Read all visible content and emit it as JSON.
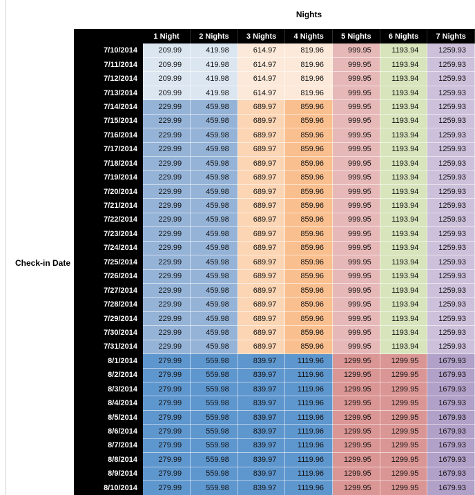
{
  "left_label": "Check-in Date",
  "chart_data": {
    "type": "table",
    "col_group_header": "Nights",
    "row_group_header": "Check-in Date",
    "columns": [
      "1 Night",
      "2 Nights",
      "3 Nights",
      "4 Nights",
      "5 Nights",
      "6 Nights",
      "7 Nights"
    ],
    "rows": [
      {
        "date": "7/10/2014",
        "values": [
          "209.99",
          "419.98",
          "614.97",
          "819.96",
          "999.95",
          "1193.94",
          "1259.93"
        ]
      },
      {
        "date": "7/11/2014",
        "values": [
          "209.99",
          "419.98",
          "614.97",
          "819.96",
          "999.95",
          "1193.94",
          "1259.93"
        ]
      },
      {
        "date": "7/12/2014",
        "values": [
          "209.99",
          "419.98",
          "614.97",
          "819.96",
          "999.95",
          "1193.94",
          "1259.93"
        ]
      },
      {
        "date": "7/13/2014",
        "values": [
          "209.99",
          "419.98",
          "614.97",
          "819.96",
          "999.95",
          "1193.94",
          "1259.93"
        ]
      },
      {
        "date": "7/14/2014",
        "values": [
          "229.99",
          "459.98",
          "689.97",
          "859.96",
          "999.95",
          "1193.94",
          "1259.93"
        ]
      },
      {
        "date": "7/15/2014",
        "values": [
          "229.99",
          "459.98",
          "689.97",
          "859.96",
          "999.95",
          "1193.94",
          "1259.93"
        ]
      },
      {
        "date": "7/16/2014",
        "values": [
          "229.99",
          "459.98",
          "689.97",
          "859.96",
          "999.95",
          "1193.94",
          "1259.93"
        ]
      },
      {
        "date": "7/17/2014",
        "values": [
          "229.99",
          "459.98",
          "689.97",
          "859.96",
          "999.95",
          "1193.94",
          "1259.93"
        ]
      },
      {
        "date": "7/18/2014",
        "values": [
          "229.99",
          "459.98",
          "689.97",
          "859.96",
          "999.95",
          "1193.94",
          "1259.93"
        ]
      },
      {
        "date": "7/19/2014",
        "values": [
          "229.99",
          "459.98",
          "689.97",
          "859.96",
          "999.95",
          "1193.94",
          "1259.93"
        ]
      },
      {
        "date": "7/20/2014",
        "values": [
          "229.99",
          "459.98",
          "689.97",
          "859.96",
          "999.95",
          "1193.94",
          "1259.93"
        ]
      },
      {
        "date": "7/21/2014",
        "values": [
          "229.99",
          "459.98",
          "689.97",
          "859.96",
          "999.95",
          "1193.94",
          "1259.93"
        ]
      },
      {
        "date": "7/22/2014",
        "values": [
          "229.99",
          "459.98",
          "689.97",
          "859.96",
          "999.95",
          "1193.94",
          "1259.93"
        ]
      },
      {
        "date": "7/23/2014",
        "values": [
          "229.99",
          "459.98",
          "689.97",
          "859.96",
          "999.95",
          "1193.94",
          "1259.93"
        ]
      },
      {
        "date": "7/24/2014",
        "values": [
          "229.99",
          "459.98",
          "689.97",
          "859.96",
          "999.95",
          "1193.94",
          "1259.93"
        ]
      },
      {
        "date": "7/25/2014",
        "values": [
          "229.99",
          "459.98",
          "689.97",
          "859.96",
          "999.95",
          "1193.94",
          "1259.93"
        ]
      },
      {
        "date": "7/26/2014",
        "values": [
          "229.99",
          "459.98",
          "689.97",
          "859.96",
          "999.95",
          "1193.94",
          "1259.93"
        ]
      },
      {
        "date": "7/27/2014",
        "values": [
          "229.99",
          "459.98",
          "689.97",
          "859.96",
          "999.95",
          "1193.94",
          "1259.93"
        ]
      },
      {
        "date": "7/28/2014",
        "values": [
          "229.99",
          "459.98",
          "689.97",
          "859.96",
          "999.95",
          "1193.94",
          "1259.93"
        ]
      },
      {
        "date": "7/29/2014",
        "values": [
          "229.99",
          "459.98",
          "689.97",
          "859.96",
          "999.95",
          "1193.94",
          "1259.93"
        ]
      },
      {
        "date": "7/30/2014",
        "values": [
          "229.99",
          "459.98",
          "689.97",
          "859.96",
          "999.95",
          "1193.94",
          "1259.93"
        ]
      },
      {
        "date": "7/31/2014",
        "values": [
          "229.99",
          "459.98",
          "689.97",
          "859.96",
          "999.95",
          "1193.94",
          "1259.93"
        ]
      },
      {
        "date": "8/1/2014",
        "values": [
          "279.99",
          "559.98",
          "839.97",
          "1119.96",
          "1299.95",
          "1299.95",
          "1679.93"
        ]
      },
      {
        "date": "8/2/2014",
        "values": [
          "279.99",
          "559.98",
          "839.97",
          "1119.96",
          "1299.95",
          "1299.95",
          "1679.93"
        ]
      },
      {
        "date": "8/3/2014",
        "values": [
          "279.99",
          "559.98",
          "839.97",
          "1119.96",
          "1299.95",
          "1299.95",
          "1679.93"
        ]
      },
      {
        "date": "8/4/2014",
        "values": [
          "279.99",
          "559.98",
          "839.97",
          "1119.96",
          "1299.95",
          "1299.95",
          "1679.93"
        ]
      },
      {
        "date": "8/5/2014",
        "values": [
          "279.99",
          "559.98",
          "839.97",
          "1119.96",
          "1299.95",
          "1299.95",
          "1679.93"
        ]
      },
      {
        "date": "8/6/2014",
        "values": [
          "279.99",
          "559.98",
          "839.97",
          "1119.96",
          "1299.95",
          "1299.95",
          "1679.93"
        ]
      },
      {
        "date": "8/7/2014",
        "values": [
          "279.99",
          "559.98",
          "839.97",
          "1119.96",
          "1299.95",
          "1299.95",
          "1679.93"
        ]
      },
      {
        "date": "8/8/2014",
        "values": [
          "279.99",
          "559.98",
          "839.97",
          "1119.96",
          "1299.95",
          "1299.95",
          "1679.93"
        ]
      },
      {
        "date": "8/9/2014",
        "values": [
          "279.99",
          "559.98",
          "839.97",
          "1119.96",
          "1299.95",
          "1299.95",
          "1679.93"
        ]
      },
      {
        "date": "8/10/2014",
        "values": [
          "279.99",
          "559.98",
          "839.97",
          "1119.96",
          "1299.95",
          "1299.95",
          "1679.93"
        ]
      }
    ]
  },
  "style": {
    "header_bg": "#000000",
    "header_text": "#ffffff",
    "value_colors": {
      "209.99": "#DCE6F1",
      "419.98": "#DCE6F1",
      "614.97": "#FDE9D9",
      "819.96": "#FDE9D9",
      "229.99": "#95B3D7",
      "459.98": "#95B3D7",
      "689.97": "#FCD5B4",
      "859.96": "#FABF8F",
      "999.95": "#E6B8B7",
      "1193.94": "#D8E4BC",
      "1259.93": "#CCC0DA",
      "279.99": "#5E96CE",
      "559.98": "#5E96CE",
      "839.97": "#5E96CE",
      "1119.96": "#5E96CE",
      "1299.95": "#DA9694",
      "1679.93": "#B1A0C7"
    }
  }
}
